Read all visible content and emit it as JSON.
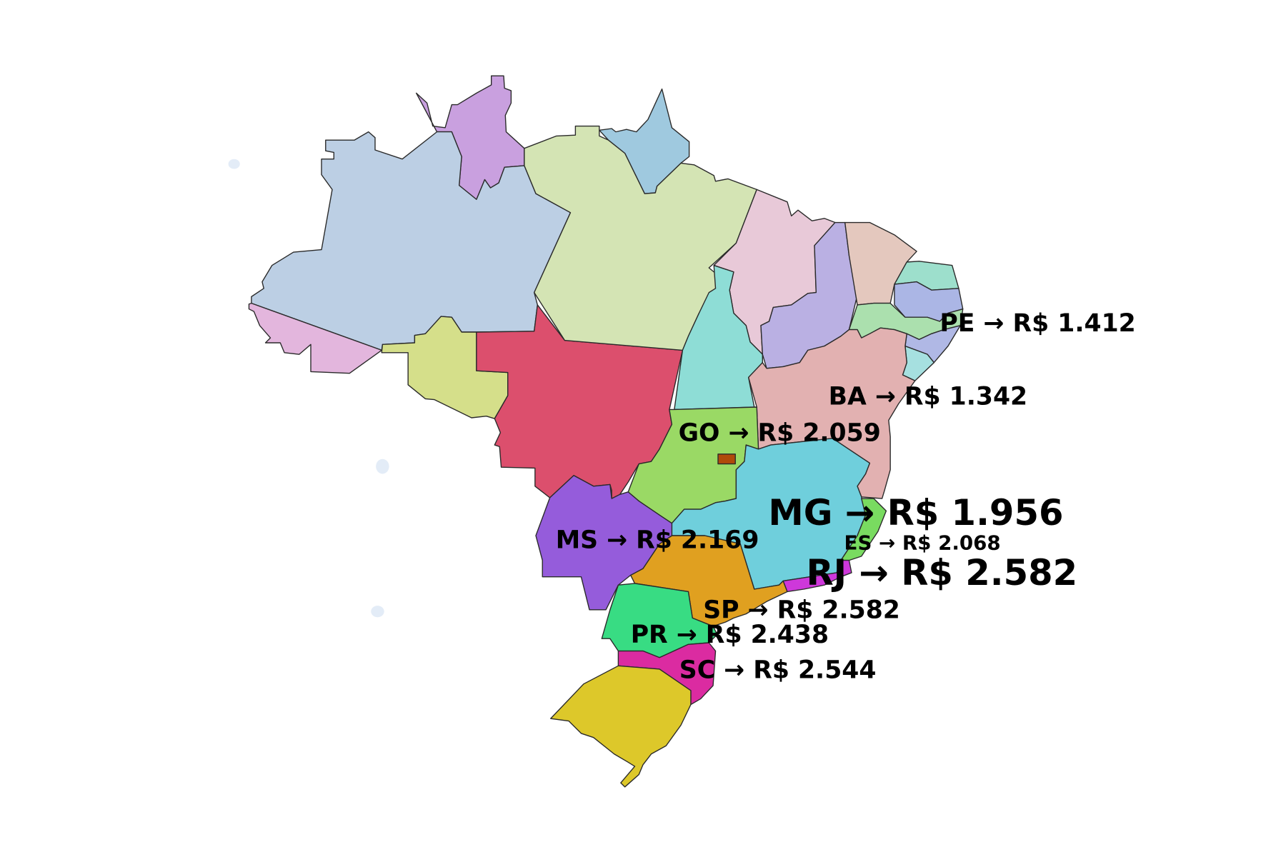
{
  "map": {
    "states": [
      {
        "code": "RR",
        "color": "#C9A0DF"
      },
      {
        "code": "AP",
        "color": "#9FC9DF"
      },
      {
        "code": "AM",
        "color": "#BCCFE4"
      },
      {
        "code": "AC",
        "color": "#E3B6DD"
      },
      {
        "code": "RO",
        "color": "#D5DF8A"
      },
      {
        "code": "MT",
        "color": "#DC4F6D"
      },
      {
        "code": "PA",
        "color": "#D4E4B4"
      },
      {
        "code": "MA",
        "color": "#E8C9D8"
      },
      {
        "code": "TO",
        "color": "#8EDDD6"
      },
      {
        "code": "PI",
        "color": "#BAB0E3"
      },
      {
        "code": "CE",
        "color": "#E4C8BE"
      },
      {
        "code": "RN",
        "color": "#9DDFCC"
      },
      {
        "code": "PB",
        "color": "#ABB6E5"
      },
      {
        "code": "PE",
        "color": "#ABE0AE"
      },
      {
        "code": "AL",
        "color": "#B0B8E5"
      },
      {
        "code": "SE",
        "color": "#A6E0E0"
      },
      {
        "code": "BA",
        "color": "#E2B1B1"
      },
      {
        "code": "GO",
        "color": "#9AD965"
      },
      {
        "code": "DF",
        "color": "#B04A0A"
      },
      {
        "code": "MG",
        "color": "#6FCFDC"
      },
      {
        "code": "ES",
        "color": "#79DB60"
      },
      {
        "code": "RJ",
        "color": "#CE38DA"
      },
      {
        "code": "SP",
        "color": "#E0A020"
      },
      {
        "code": "MS",
        "color": "#955CDB"
      },
      {
        "code": "PR",
        "color": "#38DC83"
      },
      {
        "code": "SC",
        "color": "#DB2BA1"
      },
      {
        "code": "RS",
        "color": "#DDC82A"
      }
    ],
    "labels": [
      {
        "state": "PE",
        "text": "PE → R$ 1.412"
      },
      {
        "state": "BA",
        "text": "BA → R$ 1.342"
      },
      {
        "state": "GO",
        "text": "GO → R$ 2.059"
      },
      {
        "state": "MG",
        "text": "MG → R$ 1.956"
      },
      {
        "state": "ES",
        "text": "ES → R$ 2.068"
      },
      {
        "state": "RJ",
        "text": "RJ → R$ 2.582"
      },
      {
        "state": "MS",
        "text": "MS → R$ 2.169"
      },
      {
        "state": "SP",
        "text": "SP → R$ 2.582"
      },
      {
        "state": "PR",
        "text": "PR → R$ 2.438"
      },
      {
        "state": "SC",
        "text": "SC → R$ 2.544"
      }
    ],
    "island_color": "#E3ECF7"
  }
}
